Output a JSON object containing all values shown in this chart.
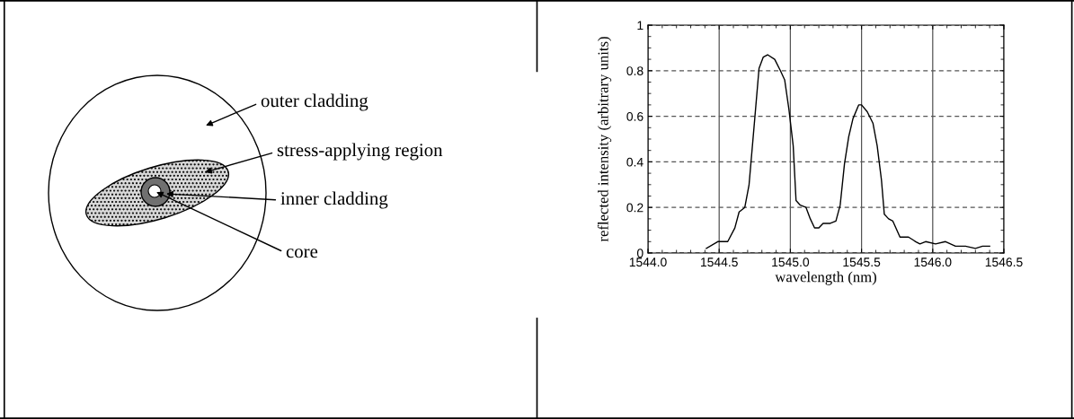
{
  "chart_data": [
    {
      "type": "other",
      "annotations": [
        "outer cladding",
        "stress-applying region",
        "inner cladding",
        "core"
      ]
    },
    {
      "type": "line",
      "xlabel": "wavelength (nm)",
      "ylabel": "reflected intensity (arbitrary units)",
      "xlim": [
        1544.0,
        1546.5
      ],
      "xticks": [
        {
          "value": 1544.0,
          "label": "1544.0"
        },
        {
          "value": 1544.5,
          "label": "1544.5"
        },
        {
          "value": 1545.0,
          "label": "1545.0"
        },
        {
          "value": 1545.5,
          "label": "1545.5"
        },
        {
          "value": 1546.0,
          "label": "1546.0"
        },
        {
          "value": 1546.5,
          "label": "1546.5"
        }
      ],
      "ylim": [
        0,
        1
      ],
      "yticks": [
        0,
        0.2,
        0.4,
        0.6,
        0.8,
        1
      ],
      "grid": true,
      "legend": false,
      "series": [
        {
          "color": "#000000",
          "line_style": "solid",
          "x": [
            1544.41,
            1544.49,
            1544.56,
            1544.61,
            1544.64,
            1544.68,
            1544.71,
            1544.75,
            1544.78,
            1544.81,
            1544.84,
            1544.89,
            1544.93,
            1544.96,
            1544.99,
            1545.02,
            1545.04,
            1545.07,
            1545.11,
            1545.14,
            1545.17,
            1545.2,
            1545.23,
            1545.28,
            1545.32,
            1545.35,
            1545.38,
            1545.41,
            1545.44,
            1545.48,
            1545.5,
            1545.54,
            1545.58,
            1545.61,
            1545.64,
            1545.66,
            1545.69,
            1545.72,
            1545.77,
            1545.83,
            1545.88,
            1545.91,
            1545.95,
            1546.02,
            1546.09,
            1546.16,
            1546.23,
            1546.3,
            1546.35,
            1546.4
          ],
          "values": [
            0.02,
            0.05,
            0.05,
            0.11,
            0.18,
            0.2,
            0.3,
            0.59,
            0.81,
            0.86,
            0.87,
            0.85,
            0.8,
            0.76,
            0.63,
            0.47,
            0.23,
            0.21,
            0.2,
            0.15,
            0.11,
            0.11,
            0.13,
            0.13,
            0.14,
            0.21,
            0.39,
            0.51,
            0.59,
            0.65,
            0.65,
            0.62,
            0.57,
            0.47,
            0.32,
            0.17,
            0.15,
            0.14,
            0.07,
            0.07,
            0.05,
            0.04,
            0.05,
            0.04,
            0.05,
            0.03,
            0.03,
            0.02,
            0.03,
            0.03
          ]
        }
      ]
    }
  ]
}
